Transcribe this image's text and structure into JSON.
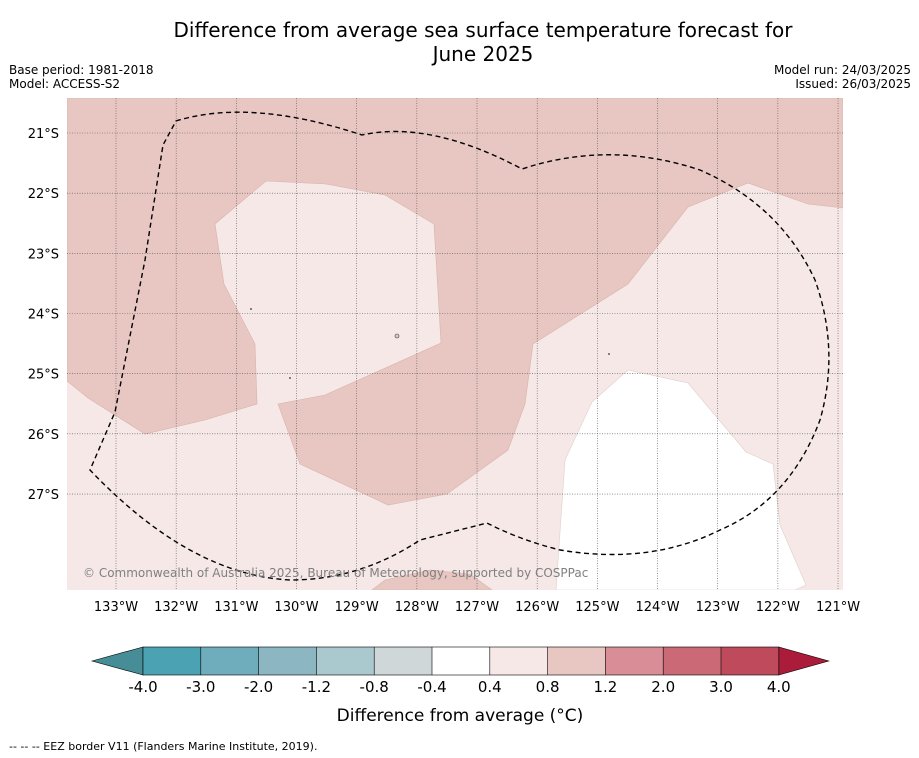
{
  "title_line1": "Difference from average sea surface temperature forecast for",
  "title_line2": "June 2025",
  "meta_left": {
    "base_period": "Base period: 1981-2018",
    "model": "Model: ACCESS-S2"
  },
  "meta_right": {
    "model_run": "Model run: 24/03/2025",
    "issued": "Issued: 26/03/2025"
  },
  "map": {
    "lon_labels": [
      "133°W",
      "132°W",
      "131°W",
      "130°W",
      "129°W",
      "128°W",
      "127°W",
      "126°W",
      "125°W",
      "124°W",
      "123°W",
      "122°W",
      "121°W"
    ],
    "lat_labels": [
      "21°S",
      "22°S",
      "23°S",
      "24°S",
      "25°S",
      "26°S",
      "27°S"
    ],
    "copyright": "© Commonwealth of Australia 2025, Bureau of Meteorology, supported by COSPPac",
    "colors": {
      "band_0_8_1_2": "#e8c6c1",
      "band_0_4_0_8": "#f5e8e6",
      "band_neutral": "#ffffff"
    }
  },
  "colorbar": {
    "ticks": [
      "-4.0",
      "-3.0",
      "-2.0",
      "-1.2",
      "-0.8",
      "-0.4",
      "0.4",
      "0.8",
      "1.2",
      "2.0",
      "3.0",
      "4.0"
    ],
    "colors": [
      "#468d97",
      "#4aa2b3",
      "#6fadbc",
      "#8bb6c2",
      "#a9c9ce",
      "#cfd7d9",
      "#ffffff",
      "#f5e8e6",
      "#e8c6c1",
      "#d98d96",
      "#cb6a76",
      "#be4a5b",
      "#aa1c3a"
    ],
    "label": "Difference from average (°C)"
  },
  "footnote": "--  --  -- EEZ border V11 (Flanders Marine Institute, 2019)."
}
